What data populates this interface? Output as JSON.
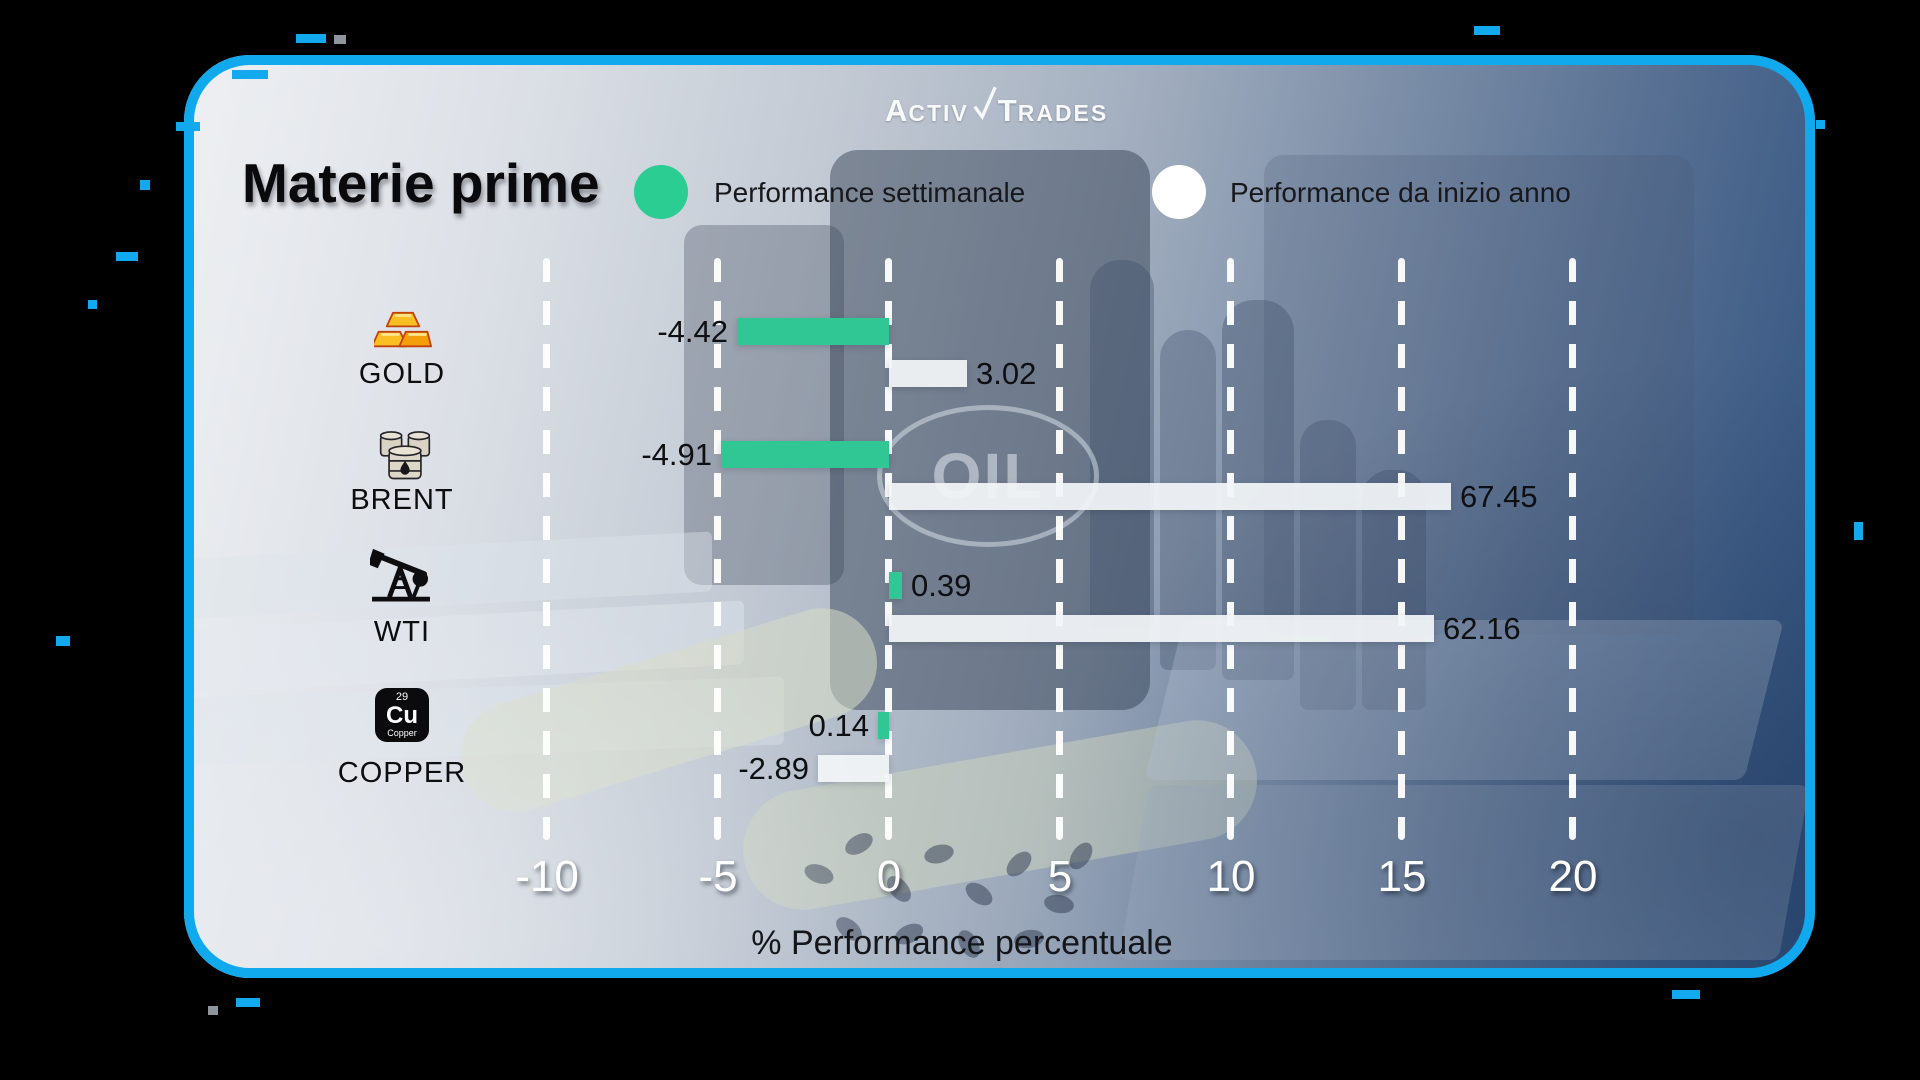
{
  "brand": {
    "name": "ActivTrades",
    "logo": {
      "a": "A",
      "ctiv": "CTIV",
      "t": "T",
      "rades": "RADES"
    }
  },
  "title": "Materie prime",
  "legend": {
    "weekly": {
      "label": "Performance settimanale",
      "color": "#2bcd92"
    },
    "ytd": {
      "label": "Performance da inizio anno",
      "color": "#ffffff"
    }
  },
  "background": {
    "oil_text": "OIL"
  },
  "axis": {
    "label": "% Performance percentuale",
    "ticks": [
      "-10",
      "-5",
      "0",
      "5",
      "10",
      "15",
      "20"
    ]
  },
  "rows": [
    {
      "name": "GOLD",
      "icon": "gold-bars-icon",
      "weekly_value": "-4.42",
      "ytd_value": "3.02"
    },
    {
      "name": "BRENT",
      "icon": "oil-barrels-icon",
      "weekly_value": "-4.91",
      "ytd_value": "67.45"
    },
    {
      "name": "WTI",
      "icon": "oil-pump-jack-icon",
      "weekly_value": "0.39",
      "ytd_value": "62.16"
    },
    {
      "name": "COPPER",
      "icon": "copper-element-icon",
      "weekly_value": "0.14",
      "ytd_value": "-2.89",
      "icon_number": "29",
      "icon_symbol": "Cu",
      "icon_caption": "Copper"
    }
  ],
  "chart_data": {
    "type": "bar",
    "orientation": "horizontal",
    "title": "Materie prime",
    "categories": [
      "GOLD",
      "BRENT",
      "WTI",
      "COPPER"
    ],
    "series": [
      {
        "name": "Performance settimanale",
        "color": "#31c795",
        "values": [
          -4.42,
          -4.91,
          0.39,
          0.14
        ]
      },
      {
        "name": "Performance da inizio anno",
        "color": "#f2f5f8",
        "values": [
          3.02,
          67.45,
          62.16,
          -2.89
        ]
      }
    ],
    "xlabel": "% Performance percentuale",
    "x_ticks": [
      -10,
      -5,
      0,
      5,
      10,
      15,
      20
    ],
    "xlim": [
      -12.6,
      22.6
    ],
    "grid": "vertical-dashed-white",
    "legend_position": "top",
    "note": "Bars for 67.45 and 62.16 extend beyond the 20 axis limit and are clipped at the right edge of the plot"
  }
}
